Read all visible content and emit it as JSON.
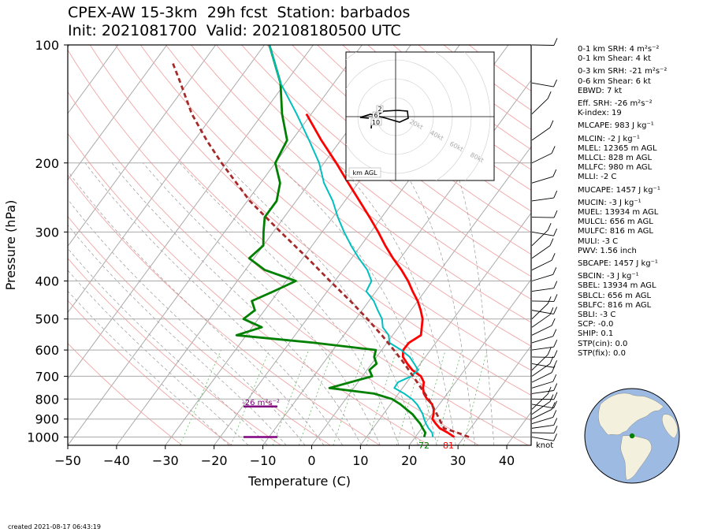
{
  "header": {
    "title_line1": "CPEX-AW 15-3km  29h fcst  Station: barbados",
    "title_line2": "Init: 2021081700  Valid: 202108180500 UTC"
  },
  "chart_data": {
    "type": "skew-t",
    "xlabel": "Temperature (C)",
    "ylabel": "Pressure (hPa)",
    "x_ticks": [
      -50,
      -40,
      -30,
      -20,
      -10,
      0,
      10,
      20,
      30,
      40
    ],
    "x_tick_labels": [
      "−50",
      "−40",
      "−30",
      "−20",
      "−10",
      "0",
      "10",
      "20",
      "30",
      "40"
    ],
    "y_ticks": [
      100,
      200,
      300,
      400,
      500,
      600,
      700,
      800,
      900,
      1000
    ],
    "xlim": [
      -50,
      45
    ],
    "ylim": [
      1050,
      100
    ],
    "series": [
      {
        "key": "temperature",
        "color": "#ff0000",
        "p": [
          1000,
          975,
          950,
          925,
          900,
          875,
          850,
          825,
          800,
          775,
          750,
          725,
          700,
          675,
          650,
          625,
          600,
          575,
          550,
          525,
          500,
          475,
          450,
          425,
          400,
          375,
          350,
          325,
          300,
          275,
          250,
          225,
          200,
          175,
          150
        ],
        "t": [
          28.0,
          26.0,
          23.7,
          22.2,
          20.8,
          20.3,
          19.6,
          18.5,
          16.7,
          15.2,
          14.2,
          13.5,
          12.0,
          9.3,
          7.3,
          5.4,
          4.4,
          4.5,
          5.8,
          4.8,
          3.7,
          2.0,
          0.0,
          -2.5,
          -5.0,
          -8.0,
          -11.5,
          -15.0,
          -18.5,
          -22.5,
          -27.0,
          -32.0,
          -37.5,
          -44.0,
          -51.0
        ]
      },
      {
        "key": "dewpoint",
        "color": "#008000",
        "p": [
          1000,
          975,
          950,
          925,
          900,
          875,
          850,
          825,
          800,
          775,
          750,
          700,
          675,
          650,
          625,
          600,
          575,
          550,
          525,
          500,
          475,
          450,
          425,
          400,
          375,
          350,
          325,
          300,
          275,
          250,
          225,
          200,
          175,
          150,
          125,
          100
        ],
        "t": [
          21.8,
          21.4,
          20.2,
          19.0,
          17.5,
          16.0,
          14.0,
          12.0,
          9.5,
          5.0,
          -5.0,
          2.0,
          0.5,
          1.0,
          -0.5,
          -1.2,
          -15.0,
          -32.0,
          -28.0,
          -33.0,
          -32.0,
          -34.0,
          -31.0,
          -28.0,
          -36.0,
          -41.0,
          -40.0,
          -42.0,
          -44.0,
          -44.0,
          -46.0,
          -50.0,
          -51.0,
          -56.0,
          -61.0,
          -69.0
        ]
      },
      {
        "key": "wetbulb",
        "color": "#00bfbf",
        "p": [
          1000,
          975,
          950,
          925,
          900,
          875,
          850,
          825,
          800,
          775,
          750,
          725,
          700,
          675,
          650,
          625,
          600,
          575,
          550,
          525,
          500,
          475,
          450,
          425,
          400,
          375,
          350,
          325,
          300,
          275,
          250,
          225,
          200,
          175,
          150,
          125,
          100
        ],
        "t": [
          23.6,
          22.8,
          21.4,
          20.2,
          19.1,
          18.1,
          16.8,
          15.4,
          13.6,
          11.2,
          8.3,
          8.2,
          10.0,
          10.5,
          8.7,
          6.8,
          4.0,
          0.5,
          -0.8,
          -3.2,
          -4.6,
          -6.8,
          -9.0,
          -12.0,
          -12.5,
          -15.0,
          -18.5,
          -22.0,
          -25.5,
          -29.0,
          -32.5,
          -37.0,
          -41.0,
          -46.5,
          -53.0,
          -61.0,
          -69.0
        ]
      },
      {
        "key": "parcel",
        "color": "#a52a2a",
        "dashed": true,
        "p": [
          1000,
          975,
          950,
          925,
          900,
          875,
          850,
          825,
          800,
          750,
          700,
          650,
          600,
          550,
          500,
          450,
          400,
          350,
          300,
          250,
          200,
          175,
          150,
          125,
          110
        ],
        "t": [
          31.0,
          28.0,
          24.6,
          23.4,
          22.2,
          21.0,
          19.7,
          18.4,
          17.0,
          13.8,
          10.4,
          6.7,
          2.5,
          -2.2,
          -7.6,
          -13.8,
          -21.0,
          -29.0,
          -38.5,
          -49.5,
          -61.0,
          -67.5,
          -74.5,
          -81.5,
          -86.5
        ]
      }
    ],
    "surface_labels": {
      "dewpoint": "72",
      "temperature": "81"
    },
    "srh_label": "-26 m²s⁻²",
    "effective_layer": {
      "color": "#800080",
      "p_bottom": 1000,
      "p_top": 836
    },
    "wind_barbs_unit": "knot",
    "hodograph": {
      "label": "km AGL",
      "ring_labels": [
        "20kt",
        "40kt",
        "60kt",
        "80kt"
      ],
      "height_labels": [
        "2",
        "6",
        "10"
      ]
    }
  },
  "stats": [
    "0-1 km SRH: 4 m²s⁻²",
    "0-1 km Shear: 4 kt",
    "0-3 km SRH: -21 m²s⁻²",
    "0-6 km Shear: 6 kt",
    "EBWD: 7 kt",
    "Eff. SRH: -26 m²s⁻²",
    "K-index: 19",
    "MLCAPE: 983 J kg⁻¹",
    "MLCIN: -2 J kg⁻¹",
    "MLEL: 12365 m AGL",
    "MLLCL: 828 m AGL",
    "MLLFC: 980 m AGL",
    "MLLI: -2 C",
    "MUCAPE: 1457 J kg⁻¹",
    "MUCIN: -3 J kg⁻¹",
    "MUEL: 13934 m AGL",
    "MULCL: 656 m AGL",
    "MULFC: 816 m AGL",
    "MULI: -3 C",
    "PWV: 1.56 inch",
    "SBCAPE: 1457 J kg⁻¹",
    "SBCIN: -3 J kg⁻¹",
    "SBEL: 13934 m AGL",
    "SBLCL: 656 m AGL",
    "SBLFC: 816 m AGL",
    "SBLI: -3 C",
    "SCP: -0.0",
    "SHIP: 0.1",
    "STP(cin): 0.0",
    "STP(fix): 0.0"
  ],
  "footer": {
    "created": "created 2021-08-17 06:43:19"
  },
  "colors": {
    "temperature": "#ff0000",
    "dewpoint": "#008000",
    "wetbulb": "#00bfbf",
    "parcel": "#a52a2a",
    "layer": "#800080",
    "globe_ocean": "#9dbae3",
    "globe_land": "#f3f1dd"
  }
}
